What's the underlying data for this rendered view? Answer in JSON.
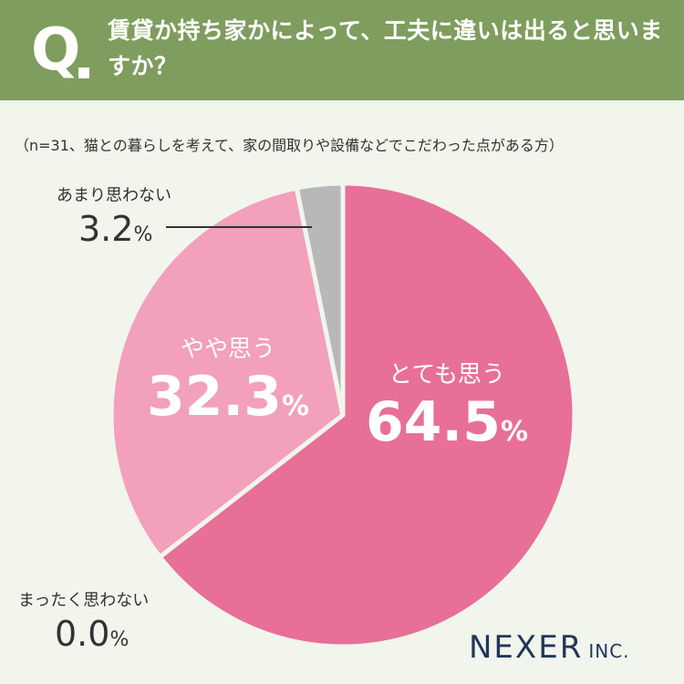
{
  "header": {
    "mark": "Q",
    "question": "賃貸か持ち家かによって、工夫に違いは出ると思いますか？"
  },
  "note": "（n=31、猫との暮らしを考えて、家の間取りや設備などでこだわった点がある方）",
  "chart_data": {
    "type": "pie",
    "categories": [
      "とても思う",
      "やや思う",
      "あまり思わない",
      "まったく思わない"
    ],
    "values": [
      64.5,
      32.3,
      3.2,
      0.0
    ],
    "unit": "%",
    "colors": [
      "#e86f97",
      "#f2a0bb",
      "#b8b8b8",
      "#d9d9d9"
    ],
    "start_angle": "12 o'clock, clockwise",
    "labels": {
      "s0": {
        "name": "とても思う",
        "value": "64.5",
        "unit": "%"
      },
      "s1": {
        "name": "やや思う",
        "value": "32.3",
        "unit": "%"
      },
      "s2": {
        "name": "あまり思わない",
        "value": "3.2",
        "unit": "%"
      },
      "s3": {
        "name": "まったく思わない",
        "value": "0.0",
        "unit": "%"
      }
    }
  },
  "brand": {
    "name": "NEXER",
    "suffix": "INC."
  }
}
